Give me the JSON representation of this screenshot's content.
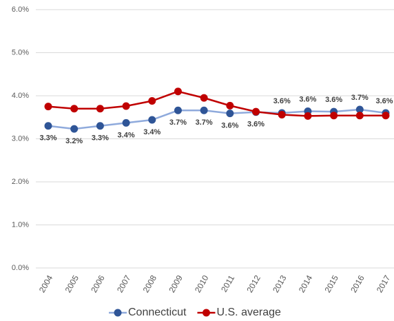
{
  "chart_data": {
    "type": "line",
    "categories": [
      "2004",
      "2005",
      "2006",
      "2007",
      "2008",
      "2009",
      "2010",
      "2011",
      "2012",
      "2013",
      "2014",
      "2015",
      "2016",
      "2017"
    ],
    "series": [
      {
        "name": "Connecticut",
        "color": "#8faadc",
        "marker_color": "#2f5597",
        "values": [
          3.3,
          3.23,
          3.3,
          3.37,
          3.44,
          3.66,
          3.66,
          3.59,
          3.62,
          3.6,
          3.64,
          3.63,
          3.68,
          3.6
        ],
        "value_labels": [
          "3.3%",
          "3.2%",
          "3.3%",
          "3.4%",
          "3.4%",
          "3.7%",
          "3.7%",
          "3.6%",
          "3.6%",
          "3.6%",
          "3.6%",
          "3.6%",
          "3.7%",
          "3.6%"
        ]
      },
      {
        "name": "U.S. average",
        "color": "#c00000",
        "marker_color": "#c00000",
        "values": [
          3.75,
          3.7,
          3.7,
          3.76,
          3.88,
          4.1,
          3.95,
          3.77,
          3.63,
          3.56,
          3.53,
          3.54,
          3.54,
          3.54
        ]
      }
    ],
    "ylim": [
      0,
      6
    ],
    "yticks": [
      {
        "value": 0,
        "label": "0.0%"
      },
      {
        "value": 1,
        "label": "1.0%"
      },
      {
        "value": 2,
        "label": "2.0%"
      },
      {
        "value": 3,
        "label": "3.0%"
      },
      {
        "value": 4,
        "label": "4.0%"
      },
      {
        "value": 5,
        "label": "5.0%"
      },
      {
        "value": 6,
        "label": "6.0%"
      }
    ],
    "grid": true,
    "legend": "bottom"
  }
}
